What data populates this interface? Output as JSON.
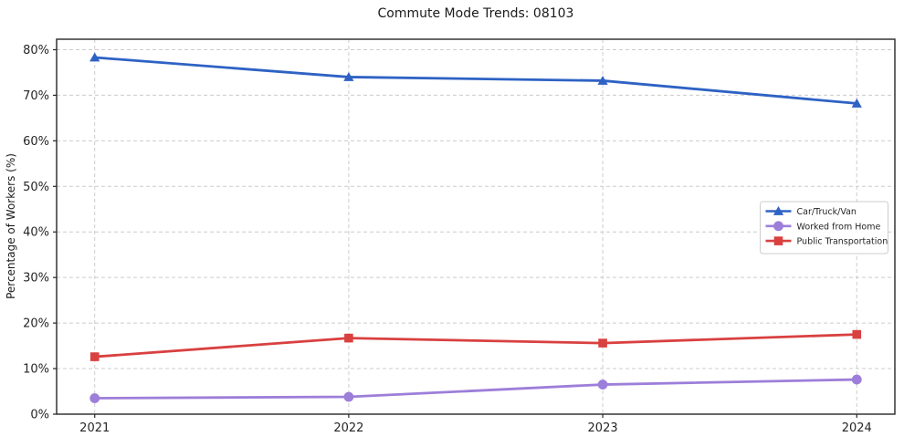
{
  "chart_data": {
    "type": "line",
    "title": "Commute Mode Trends: 08103",
    "xlabel": "",
    "ylabel": "Percentage of Workers (%)",
    "x": [
      2021,
      2022,
      2023,
      2024
    ],
    "x_tick_labels": [
      "2021",
      "2022",
      "2023",
      "2024"
    ],
    "y_ticks": [
      0,
      10,
      20,
      30,
      40,
      50,
      60,
      70,
      80
    ],
    "y_tick_labels": [
      "0%",
      "10%",
      "20%",
      "30%",
      "40%",
      "50%",
      "60%",
      "70%",
      "80%"
    ],
    "xlim": [
      2020.85,
      2024.15
    ],
    "ylim": [
      0,
      82.3
    ],
    "grid": true,
    "grid_style": "dashed",
    "legend_position": "center-right",
    "series": [
      {
        "name": "Car/Truck/Van",
        "marker": "triangle",
        "color": "#2e62c4",
        "values": [
          78.3,
          74.0,
          73.2,
          68.2
        ]
      },
      {
        "name": "Worked from Home",
        "marker": "circle",
        "color": "#9d7ed9",
        "values": [
          3.5,
          3.8,
          6.5,
          7.6
        ]
      },
      {
        "name": "Public Transportation",
        "marker": "square",
        "color": "#d94040",
        "values": [
          12.6,
          16.7,
          15.6,
          17.5
        ]
      }
    ]
  },
  "colors": {
    "background": "#ffffff",
    "gridline": "#cccccc",
    "spine": "#262626",
    "tick_text": "#262626",
    "title_text": "#1a1a1a",
    "legend_border": "#cccccc",
    "legend_background": "#ffffff"
  }
}
